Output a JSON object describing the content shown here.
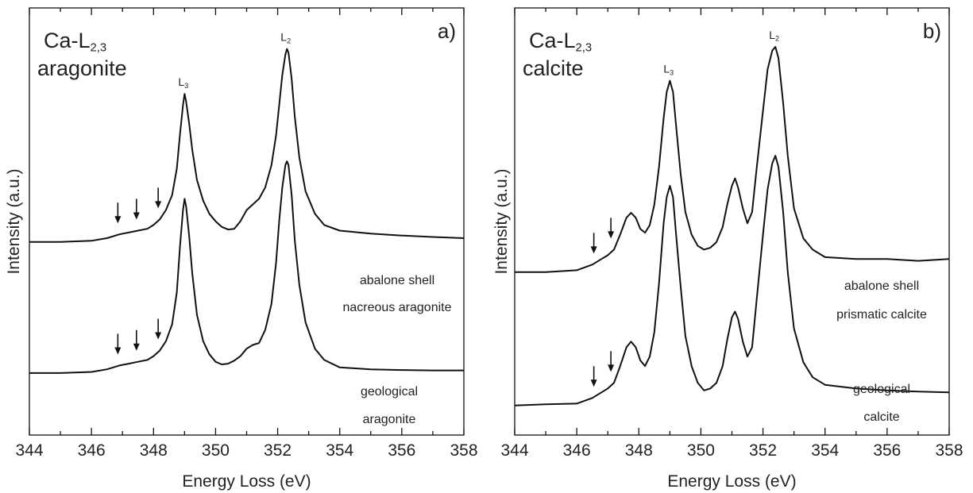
{
  "chart_data": [
    {
      "type": "line",
      "panel_label": "a)",
      "title": {
        "main": "Ca-L",
        "sub": "2,3",
        "line2": "aragonite"
      },
      "xlabel": "Energy Loss (eV)",
      "ylabel": "Intensity (a.u.)",
      "xlim": [
        344,
        358
      ],
      "xticks": [
        344,
        346,
        348,
        350,
        352,
        354,
        356,
        358
      ],
      "ylim": [
        0,
        1
      ],
      "y_ticks_labeled": false,
      "peak_labels": [
        {
          "main": "L",
          "sub": "3",
          "x": 349.0
        },
        {
          "main": "L",
          "sub": "2",
          "x": 352.3
        }
      ],
      "series": [
        {
          "name": "abalone shell nacreous aragonite",
          "label_lines": [
            "abalone shell",
            "nacreous aragonite"
          ],
          "x": [
            344.0,
            345.0,
            346.0,
            346.5,
            346.9,
            347.2,
            347.5,
            347.8,
            348.0,
            348.2,
            348.4,
            348.6,
            348.75,
            348.85,
            348.95,
            349.0,
            349.05,
            349.15,
            349.25,
            349.4,
            349.6,
            349.8,
            350.0,
            350.2,
            350.4,
            350.6,
            350.8,
            351.0,
            351.2,
            351.4,
            351.6,
            351.8,
            351.95,
            352.05,
            352.15,
            352.25,
            352.3,
            352.35,
            352.45,
            352.55,
            352.7,
            352.9,
            353.2,
            353.5,
            354.0,
            355.0,
            356.0,
            357.0,
            358.0
          ],
          "y": [
            0.435,
            0.435,
            0.438,
            0.445,
            0.455,
            0.46,
            0.465,
            0.47,
            0.48,
            0.495,
            0.52,
            0.56,
            0.63,
            0.72,
            0.8,
            0.83,
            0.81,
            0.75,
            0.68,
            0.6,
            0.545,
            0.51,
            0.49,
            0.475,
            0.468,
            0.47,
            0.49,
            0.52,
            0.535,
            0.55,
            0.58,
            0.64,
            0.72,
            0.8,
            0.88,
            0.935,
            0.95,
            0.94,
            0.87,
            0.77,
            0.66,
            0.57,
            0.51,
            0.48,
            0.465,
            0.457,
            0.452,
            0.448,
            0.445
          ]
        },
        {
          "name": "geological aragonite",
          "label_lines": [
            "geological",
            "aragonite"
          ],
          "x": [
            344.0,
            345.0,
            346.0,
            346.5,
            346.9,
            347.2,
            347.5,
            347.8,
            348.0,
            348.2,
            348.4,
            348.6,
            348.75,
            348.85,
            348.95,
            349.0,
            349.05,
            349.15,
            349.25,
            349.4,
            349.6,
            349.8,
            350.0,
            350.2,
            350.4,
            350.6,
            350.8,
            351.0,
            351.2,
            351.4,
            351.6,
            351.8,
            351.95,
            352.05,
            352.15,
            352.25,
            352.3,
            352.35,
            352.45,
            352.55,
            352.7,
            352.9,
            353.2,
            353.5,
            354.0,
            355.0,
            356.0,
            357.0,
            358.0
          ],
          "y": [
            0.085,
            0.085,
            0.088,
            0.095,
            0.105,
            0.11,
            0.115,
            0.12,
            0.13,
            0.145,
            0.17,
            0.215,
            0.3,
            0.42,
            0.52,
            0.55,
            0.53,
            0.45,
            0.35,
            0.24,
            0.17,
            0.135,
            0.115,
            0.108,
            0.11,
            0.118,
            0.13,
            0.15,
            0.16,
            0.165,
            0.2,
            0.27,
            0.38,
            0.49,
            0.58,
            0.64,
            0.65,
            0.64,
            0.56,
            0.44,
            0.32,
            0.22,
            0.15,
            0.12,
            0.1,
            0.095,
            0.093,
            0.092,
            0.092
          ]
        }
      ],
      "arrows": [
        {
          "x": 346.85,
          "series": 0
        },
        {
          "x": 347.45,
          "series": 0
        },
        {
          "x": 348.15,
          "series": 0
        },
        {
          "x": 346.85,
          "series": 1
        },
        {
          "x": 347.45,
          "series": 1
        },
        {
          "x": 348.15,
          "series": 1
        }
      ]
    },
    {
      "type": "line",
      "panel_label": "b)",
      "title": {
        "main": "Ca-L",
        "sub": "2,3",
        "line2": "calcite"
      },
      "xlabel": "Energy Loss (eV)",
      "ylabel": "Intensity (a.u.)",
      "xlim": [
        344,
        358
      ],
      "xticks": [
        344,
        346,
        348,
        350,
        352,
        354,
        356,
        358
      ],
      "ylim": [
        0,
        1
      ],
      "y_ticks_labeled": false,
      "peak_labels": [
        {
          "main": "L",
          "sub": "3",
          "x": 349.0
        },
        {
          "main": "L",
          "sub": "2",
          "x": 352.4
        }
      ],
      "series": [
        {
          "name": "abalone shell prismatic calcite",
          "label_lines": [
            "abalone shell",
            "prismatic calcite"
          ],
          "x": [
            344.0,
            345.0,
            346.0,
            346.5,
            346.8,
            347.0,
            347.2,
            347.4,
            347.6,
            347.75,
            347.9,
            348.05,
            348.2,
            348.35,
            348.5,
            348.65,
            348.8,
            348.9,
            349.0,
            349.1,
            349.2,
            349.35,
            349.5,
            349.7,
            349.9,
            350.1,
            350.3,
            350.5,
            350.7,
            350.85,
            351.0,
            351.1,
            351.2,
            351.35,
            351.5,
            351.65,
            351.8,
            352.0,
            352.15,
            352.3,
            352.4,
            352.5,
            352.65,
            352.8,
            353.0,
            353.3,
            353.6,
            354.0,
            355.0,
            356.0,
            357.0,
            358.0
          ],
          "y": [
            0.4,
            0.4,
            0.405,
            0.42,
            0.435,
            0.445,
            0.46,
            0.5,
            0.545,
            0.558,
            0.545,
            0.515,
            0.505,
            0.525,
            0.58,
            0.68,
            0.81,
            0.88,
            0.91,
            0.88,
            0.79,
            0.66,
            0.56,
            0.5,
            0.47,
            0.46,
            0.465,
            0.48,
            0.52,
            0.58,
            0.63,
            0.65,
            0.625,
            0.57,
            0.53,
            0.56,
            0.68,
            0.83,
            0.94,
            0.99,
            1.0,
            0.97,
            0.85,
            0.71,
            0.57,
            0.49,
            0.46,
            0.44,
            0.435,
            0.435,
            0.43,
            0.435
          ]
        },
        {
          "name": "geological calcite",
          "label_lines": [
            "geological",
            "calcite"
          ],
          "x": [
            344.0,
            345.0,
            346.0,
            346.5,
            346.8,
            347.0,
            347.2,
            347.4,
            347.6,
            347.75,
            347.9,
            348.05,
            348.2,
            348.35,
            348.5,
            348.65,
            348.8,
            348.9,
            349.0,
            349.1,
            349.2,
            349.35,
            349.5,
            349.7,
            349.9,
            350.1,
            350.3,
            350.5,
            350.7,
            350.85,
            351.0,
            351.1,
            351.2,
            351.35,
            351.5,
            351.65,
            351.8,
            352.0,
            352.15,
            352.3,
            352.4,
            352.5,
            352.65,
            352.8,
            353.0,
            353.3,
            353.6,
            354.0,
            355.0,
            356.0,
            357.0,
            358.0
          ],
          "y": [
            0.045,
            0.048,
            0.05,
            0.065,
            0.08,
            0.09,
            0.105,
            0.15,
            0.2,
            0.215,
            0.2,
            0.165,
            0.15,
            0.175,
            0.24,
            0.37,
            0.53,
            0.6,
            0.63,
            0.6,
            0.5,
            0.36,
            0.23,
            0.15,
            0.105,
            0.085,
            0.09,
            0.105,
            0.15,
            0.22,
            0.28,
            0.295,
            0.275,
            0.215,
            0.175,
            0.2,
            0.33,
            0.5,
            0.62,
            0.69,
            0.71,
            0.68,
            0.56,
            0.4,
            0.25,
            0.16,
            0.12,
            0.1,
            0.09,
            0.085,
            0.082,
            0.08
          ]
        }
      ],
      "arrows": [
        {
          "x": 346.55,
          "series": 0
        },
        {
          "x": 347.1,
          "series": 0
        },
        {
          "x": 346.55,
          "series": 1
        },
        {
          "x": 347.1,
          "series": 1
        }
      ]
    }
  ]
}
